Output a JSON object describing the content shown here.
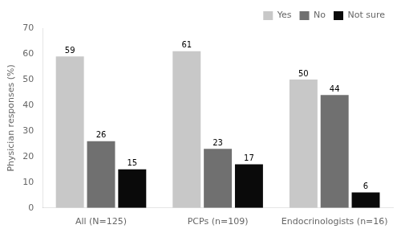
{
  "chart_data": {
    "type": "bar",
    "categories": [
      "All (N=125)",
      "PCPs (n=109)",
      "Endocrinologists (n=16)"
    ],
    "series": [
      {
        "name": "Yes",
        "color": "#c8c8c8",
        "values": [
          59,
          61,
          50
        ]
      },
      {
        "name": "No",
        "color": "#707070",
        "values": [
          26,
          23,
          44
        ]
      },
      {
        "name": "Not sure",
        "color": "#0a0a0a",
        "values": [
          15,
          17,
          6
        ]
      }
    ],
    "ylabel": "Physician responses (%)",
    "ylim": [
      0,
      70
    ],
    "yticks": [
      0,
      10,
      20,
      30,
      40,
      50,
      60,
      70
    ],
    "data_labels": true,
    "legend": "upper right",
    "grid": false
  }
}
